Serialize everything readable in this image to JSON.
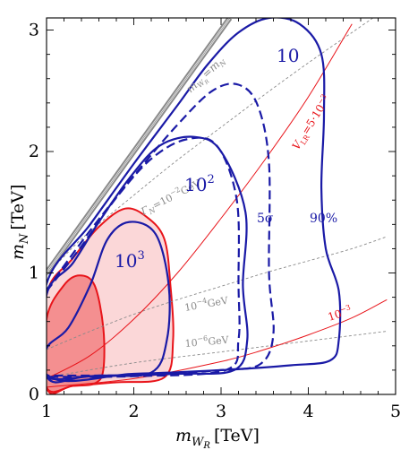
{
  "chart_data": {
    "type": "line",
    "xlabel_main": "m",
    "xlabel_sub": "W",
    "xlabel_subsub": "R",
    "xlabel_unit": "[TeV]",
    "ylabel_main": "m",
    "ylabel_sub": "N",
    "ylabel_unit": "[TeV]",
    "xlim": [
      1,
      5
    ],
    "ylim": [
      0,
      3.1
    ],
    "xticks": [
      1,
      2,
      3,
      4,
      5
    ],
    "yticks": [
      0,
      1,
      2,
      3
    ],
    "kinematic_line": {
      "label": "m",
      "label_sub": "W",
      "label_subsub": "R",
      "label_rhs": "=m",
      "label_rhs_sub": "N",
      "points": [
        [
          1,
          1
        ],
        [
          3.1,
          3.1
        ]
      ],
      "color": "#8a8a8a"
    },
    "width_lines": {
      "color": "#8a8a8a",
      "labels": [
        {
          "name": "Γ",
          "sub": "N",
          "text": "=10",
          "sup": "−2",
          "unit": "GeV"
        },
        {
          "text": "10",
          "sup": "−4",
          "unit": "GeV"
        },
        {
          "text": "10",
          "sup": "−6",
          "unit": "GeV"
        }
      ],
      "series": [
        [
          [
            1,
            0.98
          ],
          [
            1.4,
            1.28
          ],
          [
            2,
            1.64
          ],
          [
            2.5,
            1.93
          ],
          [
            3,
            2.2
          ],
          [
            3.5,
            2.47
          ],
          [
            4,
            2.73
          ],
          [
            4.5,
            2.98
          ],
          [
            4.9,
            3.18
          ]
        ],
        [
          [
            1,
            0.37
          ],
          [
            1.5,
            0.52
          ],
          [
            2,
            0.66
          ],
          [
            2.5,
            0.78
          ],
          [
            3,
            0.89
          ],
          [
            3.5,
            1.0
          ],
          [
            4,
            1.1
          ],
          [
            4.5,
            1.2
          ],
          [
            4.9,
            1.3
          ]
        ],
        [
          [
            1,
            0.14
          ],
          [
            2,
            0.26
          ],
          [
            3,
            0.35
          ],
          [
            4,
            0.44
          ],
          [
            4.9,
            0.52
          ]
        ]
      ]
    },
    "vlr_lines": {
      "color": "#e8141a",
      "labels": [
        {
          "name": "V",
          "sub": "LR",
          "text": "=5·10",
          "sup": "−3"
        },
        {
          "text": "10",
          "sup": "−3"
        }
      ],
      "series": [
        [
          [
            1,
            0.13
          ],
          [
            1.5,
            0.32
          ],
          [
            2,
            0.62
          ],
          [
            2.5,
            1.0
          ],
          [
            3,
            1.45
          ],
          [
            3.5,
            1.93
          ],
          [
            4,
            2.45
          ],
          [
            4.5,
            3.05
          ]
        ],
        [
          [
            1,
            0.06
          ],
          [
            2,
            0.13
          ],
          [
            3,
            0.27
          ],
          [
            3.5,
            0.37
          ],
          [
            4,
            0.49
          ],
          [
            4.5,
            0.63
          ],
          [
            4.9,
            0.78
          ]
        ]
      ]
    },
    "blue_contours": {
      "color": "#1a1aa6",
      "labels": [
        {
          "text": "10"
        },
        {
          "text": "10",
          "sup": "2"
        },
        {
          "text": "10",
          "sup": "3"
        },
        {
          "text": "5σ"
        },
        {
          "text": "90%"
        }
      ],
      "solid": [
        {
          "points": [
            [
              1,
              0.91
            ],
            [
              1.5,
              1.4
            ],
            [
              2,
              1.9
            ],
            [
              2.5,
              2.38
            ],
            [
              2.85,
              2.72
            ],
            [
              3.2,
              2.98
            ],
            [
              3.55,
              3.1
            ],
            [
              3.9,
              3.05
            ],
            [
              4.15,
              2.8
            ],
            [
              4.18,
              2.3
            ],
            [
              4.15,
              1.7
            ],
            [
              4.2,
              1.2
            ],
            [
              4.35,
              0.85
            ],
            [
              4.35,
              0.45
            ],
            [
              4.25,
              0.28
            ],
            [
              3.8,
              0.24
            ],
            [
              3,
              0.2
            ],
            [
              2,
              0.17
            ],
            [
              1,
              0.165
            ],
            [
              1,
              0.91
            ]
          ],
          "closed": true
        },
        {
          "points": [
            [
              1,
              0.82
            ],
            [
              1.3,
              1.08
            ],
            [
              1.6,
              1.42
            ],
            [
              1.95,
              1.78
            ],
            [
              2.3,
              2.05
            ],
            [
              2.7,
              2.12
            ],
            [
              3.0,
              2.0
            ],
            [
              3.28,
              1.5
            ],
            [
              3.25,
              0.9
            ],
            [
              3.3,
              0.45
            ],
            [
              3.15,
              0.2
            ],
            [
              2.5,
              0.17
            ],
            [
              1.5,
              0.15
            ],
            [
              1,
              0.15
            ],
            [
              1,
              0.82
            ]
          ],
          "closed": true
        },
        {
          "points": [
            [
              1,
              0.38
            ],
            [
              1.25,
              0.55
            ],
            [
              1.5,
              0.9
            ],
            [
              1.7,
              1.28
            ],
            [
              1.95,
              1.42
            ],
            [
              2.25,
              1.32
            ],
            [
              2.4,
              0.9
            ],
            [
              2.38,
              0.45
            ],
            [
              2.2,
              0.18
            ],
            [
              1.6,
              0.155
            ],
            [
              1,
              0.14
            ],
            [
              1,
              0.38
            ]
          ],
          "closed": true
        }
      ],
      "dashed": [
        [
          [
            1,
            0.86
          ],
          [
            1.5,
            1.35
          ],
          [
            2,
            1.8
          ],
          [
            2.5,
            2.22
          ],
          [
            2.9,
            2.5
          ],
          [
            3.2,
            2.55
          ],
          [
            3.42,
            2.38
          ],
          [
            3.55,
            1.9
          ],
          [
            3.55,
            1.0
          ],
          [
            3.6,
            0.5
          ],
          [
            3.45,
            0.25
          ],
          [
            3,
            0.2
          ],
          [
            2,
            0.16
          ],
          [
            1,
            0.155
          ]
        ],
        [
          [
            1,
            0.85
          ],
          [
            1.4,
            1.22
          ],
          [
            1.8,
            1.62
          ],
          [
            2.2,
            1.94
          ],
          [
            2.6,
            2.1
          ],
          [
            2.95,
            2.05
          ],
          [
            3.18,
            1.6
          ],
          [
            3.2,
            0.9
          ],
          [
            3.2,
            0.45
          ],
          [
            3.05,
            0.2
          ],
          [
            2,
            0.15
          ],
          [
            1,
            0.145
          ]
        ]
      ]
    },
    "red_regions": {
      "stroke": "#e8141a",
      "outer_fill": "#fbd7d8",
      "inner_fill": "#f48f90",
      "outer": [
        [
          1,
          0.82
        ],
        [
          1.3,
          1.12
        ],
        [
          1.6,
          1.38
        ],
        [
          1.9,
          1.53
        ],
        [
          2.15,
          1.46
        ],
        [
          2.35,
          1.28
        ],
        [
          2.42,
          0.9
        ],
        [
          2.45,
          0.45
        ],
        [
          2.35,
          0.14
        ],
        [
          1.8,
          0.1
        ],
        [
          1.3,
          0.07
        ],
        [
          1,
          0.06
        ],
        [
          1,
          0.82
        ]
      ],
      "inner": [
        [
          1,
          0.62
        ],
        [
          1.2,
          0.9
        ],
        [
          1.38,
          0.98
        ],
        [
          1.55,
          0.9
        ],
        [
          1.65,
          0.55
        ],
        [
          1.65,
          0.2
        ],
        [
          1.55,
          0.09
        ],
        [
          1.3,
          0.07
        ],
        [
          1,
          0.06
        ],
        [
          1,
          0.62
        ]
      ]
    }
  }
}
